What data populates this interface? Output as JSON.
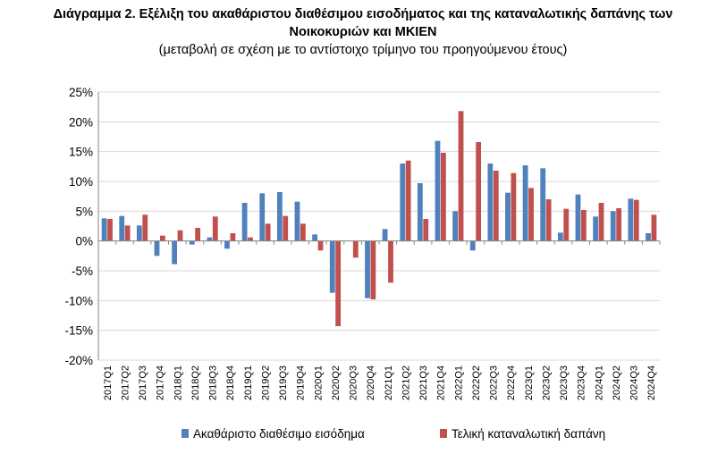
{
  "header": {
    "title_line1": "Διάγραμμα 2. Εξέλιξη του ακαθάριστου διαθέσιμου εισοδήματος και της καταναλωτικής δαπάνης των",
    "title_line2": "Νοικοκυριών και ΜΚΙΕΝ",
    "subtitle": "(μεταβολή σε σχέση με το αντίστοιχο τρίμηνο του προηγούμενου έτους)"
  },
  "chart_data": {
    "type": "bar",
    "title": "Διάγραμμα 2. Εξέλιξη του ακαθάριστου διαθέσιμου εισοδήματος και της καταναλωτικής δαπάνης των Νοικοκυριών και ΜΚΙΕΝ",
    "subtitle": "(μεταβολή σε σχέση με το αντίστοιχο τρίμηνο του προηγούμενου έτους)",
    "xlabel": "",
    "ylabel": "",
    "ylim": [
      -20,
      25
    ],
    "yticks": [
      "25%",
      "20%",
      "15%",
      "10%",
      "5%",
      "0%",
      "-5%",
      "-10%",
      "-15%",
      "-20%"
    ],
    "ytick_values": [
      25,
      20,
      15,
      10,
      5,
      0,
      -5,
      -10,
      -15,
      -20
    ],
    "grid": true,
    "legend_position": "bottom",
    "categories": [
      "2017Q1",
      "2017Q2",
      "2017Q3",
      "2017Q4",
      "2018Q1",
      "2018Q2",
      "2018Q3",
      "2018Q4",
      "2019Q1",
      "2019Q2",
      "2019Q3",
      "2019Q4",
      "2020Q1",
      "2020Q2",
      "2020Q3",
      "2020Q4",
      "2021Q1",
      "2021Q2",
      "2021Q3",
      "2021Q4",
      "2022Q1",
      "2022Q2",
      "2022Q3",
      "2022Q4",
      "2023Q1",
      "2023Q2",
      "2023Q3",
      "2023Q4",
      "2024Q1",
      "2024Q2",
      "2024Q3",
      "2024Q4"
    ],
    "series": [
      {
        "name": "Ακαθάριστο διαθέσιμο εισόδημα",
        "color": "#4f81bd",
        "values": [
          3.8,
          4.2,
          2.6,
          -2.5,
          -3.9,
          -0.6,
          0.6,
          -1.3,
          6.4,
          8.0,
          8.2,
          6.6,
          1.1,
          -8.7,
          0.0,
          -9.6,
          2.0,
          13.0,
          9.7,
          16.8,
          5.0,
          -1.6,
          13.0,
          8.1,
          12.7,
          12.2,
          1.4,
          7.8,
          4.1,
          5.0,
          7.1,
          1.3
        ]
      },
      {
        "name": "Τελική καταναλωτική δαπάνη",
        "color": "#c0504d",
        "values": [
          3.7,
          2.6,
          4.4,
          0.9,
          1.8,
          2.2,
          4.1,
          1.3,
          0.6,
          2.9,
          4.2,
          2.9,
          -1.6,
          -14.3,
          -2.8,
          -9.8,
          -7.0,
          13.5,
          3.7,
          14.8,
          21.8,
          16.6,
          11.8,
          11.4,
          8.9,
          7.0,
          5.4,
          5.2,
          6.4,
          5.5,
          6.9,
          4.4
        ]
      }
    ]
  }
}
